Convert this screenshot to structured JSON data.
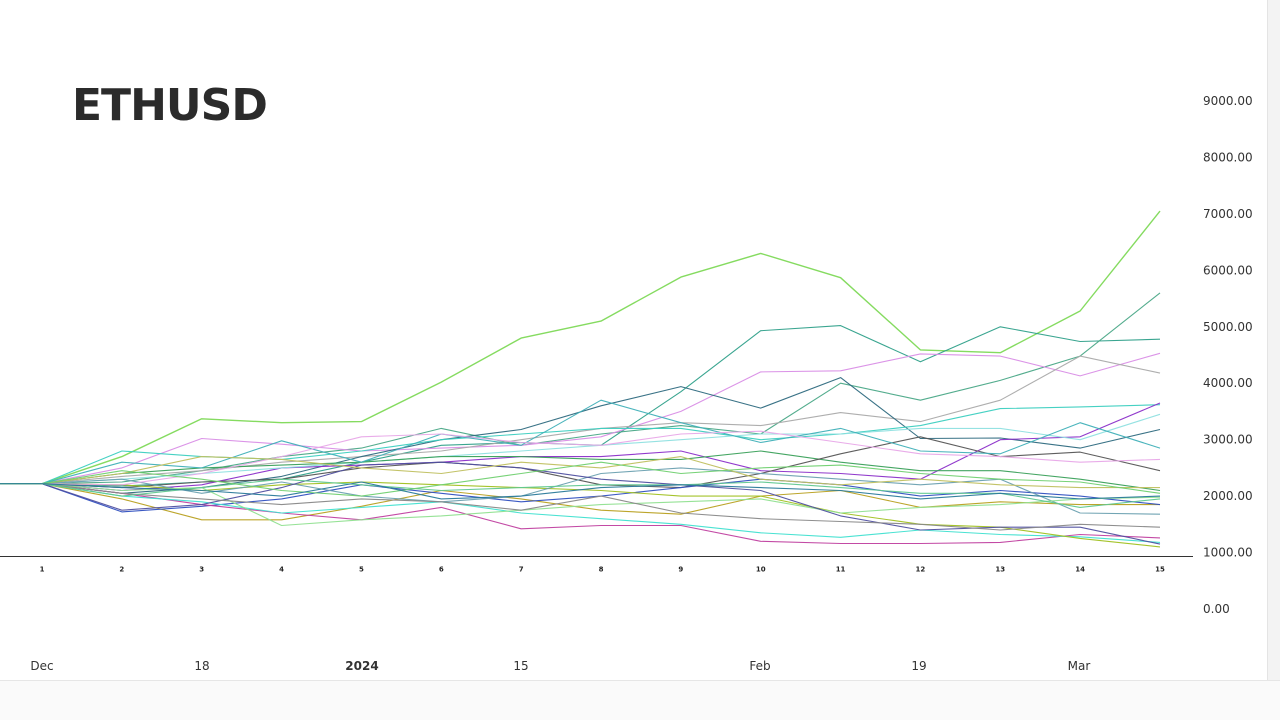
{
  "chart_data": {
    "type": "line",
    "title": "ETHUSD",
    "x": [
      "1",
      "2",
      "3",
      "4",
      "5",
      "6",
      "7",
      "8",
      "9",
      "10",
      "11",
      "12",
      "13",
      "14",
      "15"
    ],
    "date_axis": [
      "Dec",
      "18",
      "2024",
      "15",
      "Feb",
      "19",
      "Mar"
    ],
    "ylim": [
      0,
      9000
    ],
    "y_ticks": [
      "9000.00",
      "8000.00",
      "7000.00",
      "6000.00",
      "5000.00",
      "4000.00",
      "3000.00",
      "2000.00",
      "1000.00",
      "0.00"
    ],
    "grid": false,
    "legend": "none",
    "series": [
      {
        "color": "#7ed957",
        "values": [
          2220,
          2700,
          3370,
          3300,
          3320,
          4020,
          4800,
          5100,
          5880,
          6300,
          5870,
          4590,
          4540,
          5280,
          7050
        ]
      },
      {
        "color": "#2fa08a",
        "values": [
          2220,
          2180,
          2250,
          2300,
          2600,
          2900,
          2950,
          2900,
          3850,
          4930,
          5020,
          4380,
          5000,
          4740,
          4780
        ]
      },
      {
        "color": "#4aa887",
        "values": [
          2220,
          2250,
          2450,
          2700,
          2850,
          3200,
          2900,
          3100,
          3250,
          3100,
          4000,
          3700,
          4050,
          4480,
          5600
        ]
      },
      {
        "color": "#d98ee6",
        "values": [
          2220,
          2500,
          3020,
          2920,
          2800,
          2850,
          2900,
          3050,
          3500,
          4200,
          4220,
          4520,
          4480,
          4130,
          4530
        ]
      },
      {
        "color": "#aaaaaa",
        "values": [
          2220,
          2350,
          2450,
          2600,
          2700,
          2800,
          3000,
          3200,
          3300,
          3250,
          3480,
          3320,
          3700,
          4480,
          4180
        ]
      },
      {
        "color": "#2e6a80",
        "values": [
          2220,
          2050,
          2150,
          2350,
          2700,
          3000,
          3180,
          3600,
          3940,
          3560,
          4100,
          3020,
          3030,
          2850,
          3180
        ]
      },
      {
        "color": "#3ccfc0",
        "values": [
          2220,
          2800,
          2700,
          2650,
          2800,
          3000,
          3100,
          3200,
          3200,
          3000,
          3100,
          3250,
          3550,
          3580,
          3620
        ]
      },
      {
        "color": "#8b2fc9",
        "values": [
          2220,
          2100,
          2200,
          2500,
          2550,
          2600,
          2700,
          2700,
          2800,
          2450,
          2400,
          2300,
          3000,
          3050,
          3650
        ]
      },
      {
        "color": "#8fe0e0",
        "values": [
          2220,
          2300,
          2400,
          2500,
          2600,
          2700,
          2800,
          2900,
          3000,
          3100,
          3100,
          3200,
          3200,
          3000,
          3450
        ]
      },
      {
        "color": "#3aa05a",
        "values": [
          2220,
          2400,
          2500,
          2550,
          2600,
          2700,
          2700,
          2650,
          2650,
          2800,
          2600,
          2450,
          2450,
          2300,
          2100
        ]
      },
      {
        "color": "#555555",
        "values": [
          2220,
          2150,
          2250,
          2300,
          2500,
          2600,
          2500,
          2200,
          2150,
          2400,
          2750,
          3050,
          2700,
          2780,
          2450
        ]
      },
      {
        "color": "#40b0b8",
        "values": [
          2220,
          2600,
          2500,
          2980,
          2600,
          3100,
          2900,
          3700,
          3300,
          2950,
          3200,
          2800,
          2750,
          3300,
          2850
        ]
      },
      {
        "color": "#b8a020",
        "values": [
          2220,
          1950,
          1580,
          1580,
          1820,
          2100,
          1950,
          1750,
          1680,
          2000,
          2100,
          1800,
          1900,
          1850,
          1850
        ]
      },
      {
        "color": "#3050c0",
        "values": [
          2220,
          1720,
          1820,
          1950,
          2200,
          2050,
          1900,
          2000,
          2150,
          2300,
          2200,
          2000,
          2100,
          2000,
          1850
        ]
      },
      {
        "color": "#c040a0",
        "values": [
          2220,
          2050,
          1850,
          1700,
          1580,
          1800,
          1420,
          1480,
          1480,
          1200,
          1160,
          1160,
          1180,
          1320,
          1260
        ]
      },
      {
        "color": "#40e0d0",
        "values": [
          2220,
          2000,
          1900,
          1700,
          1800,
          1900,
          1700,
          1600,
          1500,
          1350,
          1270,
          1400,
          1320,
          1280,
          1180
        ]
      },
      {
        "color": "#a0c020",
        "values": [
          2220,
          2200,
          2100,
          2200,
          2250,
          2200,
          2150,
          2100,
          2000,
          2000,
          1700,
          1500,
          1450,
          1250,
          1100
        ]
      },
      {
        "color": "#6aa0b0",
        "values": [
          2220,
          2300,
          2050,
          2250,
          2000,
          1900,
          2000,
          2400,
          2500,
          2400,
          2300,
          2200,
          2300,
          1700,
          1680
        ]
      },
      {
        "color": "#e8a8e8",
        "values": [
          2220,
          2200,
          2400,
          2700,
          3050,
          3100,
          2950,
          2900,
          3100,
          3150,
          2950,
          2750,
          2700,
          2600,
          2650
        ]
      },
      {
        "color": "#90e090",
        "values": [
          2220,
          2100,
          2150,
          1480,
          1580,
          1650,
          1750,
          1850,
          1900,
          1950,
          1700,
          1800,
          1850,
          1950,
          1980
        ]
      },
      {
        "color": "#5050a0",
        "values": [
          2220,
          1750,
          1850,
          2150,
          2550,
          2600,
          2500,
          2300,
          2200,
          2100,
          1650,
          1400,
          1450,
          1450,
          1150
        ]
      },
      {
        "color": "#c0c060",
        "values": [
          2220,
          2400,
          2700,
          2650,
          2500,
          2400,
          2600,
          2500,
          2700,
          2300,
          2200,
          2300,
          2200,
          2150,
          2150
        ]
      },
      {
        "color": "#888888",
        "values": [
          2220,
          2050,
          1950,
          1850,
          1950,
          1900,
          1750,
          2000,
          1700,
          1600,
          1550,
          1500,
          1400,
          1500,
          1450
        ]
      },
      {
        "color": "#60c890",
        "values": [
          2220,
          2000,
          2150,
          2300,
          2200,
          2100,
          2150,
          2200,
          2200,
          2250,
          2150,
          2050,
          2050,
          1800,
          1950
        ]
      },
      {
        "color": "#70d070",
        "values": [
          2220,
          2450,
          2300,
          2100,
          2000,
          2200,
          2400,
          2600,
          2400,
          2500,
          2550,
          2400,
          2300,
          2250,
          2050
        ]
      },
      {
        "color": "#2a7a9a",
        "values": [
          2220,
          2150,
          2100,
          2000,
          2250,
          1950,
          2000,
          2150,
          2200,
          2150,
          2100,
          1950,
          2050,
          1950,
          2000
        ]
      }
    ]
  }
}
